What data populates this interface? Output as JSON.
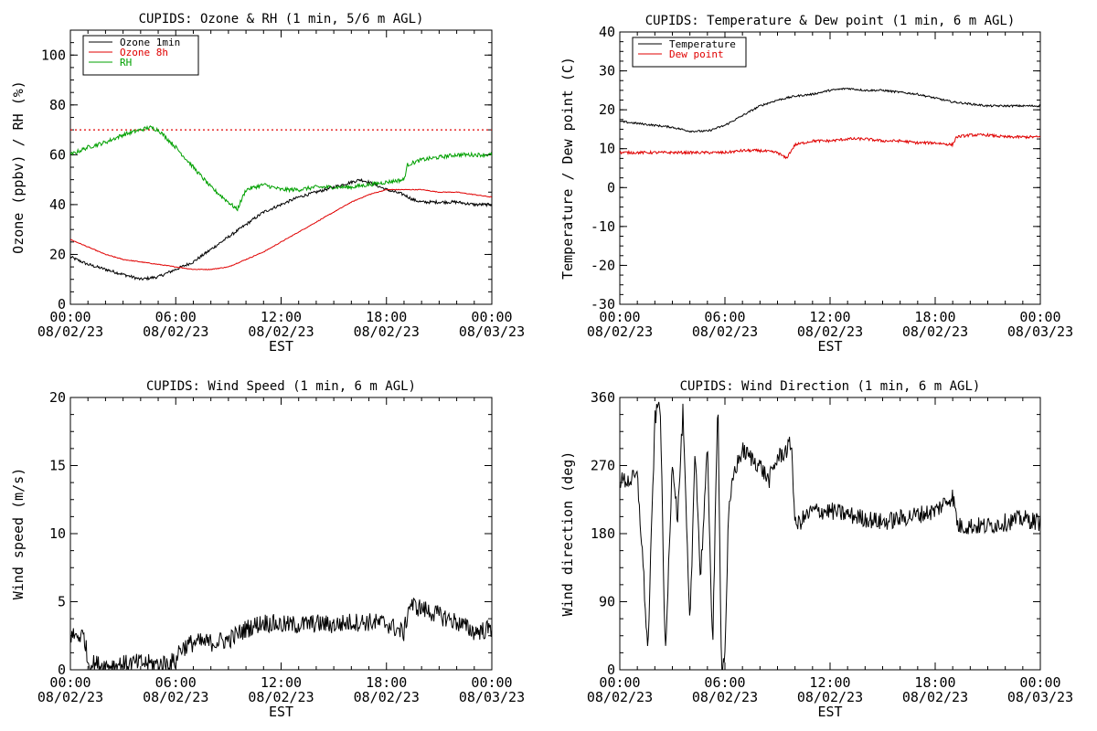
{
  "colors": {
    "black": "#000000",
    "red": "#e00000",
    "green": "#00a000"
  },
  "chart_data": [
    {
      "type": "line",
      "title": "CUPIDS: Ozone & RH (1 min, 5/6 m AGL)",
      "xlabel": "EST",
      "ylabel": "Ozone (ppbv) / RH (%)",
      "ylim": [
        0,
        110
      ],
      "yticks": [
        0,
        20,
        40,
        60,
        80,
        100
      ],
      "xlim_hours": [
        0,
        24
      ],
      "xticks": [
        {
          "hour": 0,
          "time": "00:00",
          "date": "08/02/23"
        },
        {
          "hour": 6,
          "time": "06:00",
          "date": "08/02/23"
        },
        {
          "hour": 12,
          "time": "12:00",
          "date": "08/02/23"
        },
        {
          "hour": 18,
          "time": "18:00",
          "date": "08/02/23"
        },
        {
          "hour": 24,
          "time": "00:00",
          "date": "08/03/23"
        }
      ],
      "reference_line": {
        "y": 70,
        "color": "#e00000",
        "style": "dotted"
      },
      "legend_position": "top-left",
      "series": [
        {
          "name": "Ozone 1min",
          "color": "#000000",
          "x": [
            0,
            1,
            2,
            3,
            4,
            5,
            6,
            7,
            8,
            9,
            10,
            11,
            12,
            13,
            14,
            15,
            16,
            16.5,
            17,
            18,
            19,
            19.5,
            20,
            21,
            22,
            23,
            24
          ],
          "y": [
            19,
            16,
            14,
            12,
            10,
            11,
            14,
            17,
            22,
            27,
            32,
            37,
            40,
            43,
            45,
            47,
            49,
            50,
            49,
            46,
            44,
            42,
            41,
            41,
            41,
            40,
            40
          ]
        },
        {
          "name": "Ozone 8h",
          "color": "#e00000",
          "x": [
            0,
            1,
            2,
            3,
            4,
            5,
            6,
            7,
            8,
            9,
            10,
            11,
            12,
            13,
            14,
            15,
            16,
            17,
            18,
            19,
            20,
            21,
            22,
            23,
            24
          ],
          "y": [
            26,
            23,
            20,
            18,
            17,
            16,
            15,
            14,
            14,
            15,
            18,
            21,
            25,
            29,
            33,
            37,
            41,
            44,
            46,
            46,
            46,
            45,
            45,
            44,
            43
          ]
        },
        {
          "name": "RH",
          "color": "#00a000",
          "x": [
            0,
            1,
            2,
            3,
            4,
            4.5,
            5,
            6,
            7,
            8,
            9,
            9.5,
            10,
            11,
            12,
            13,
            14,
            15,
            16,
            17,
            18,
            19,
            19.2,
            20,
            21,
            22,
            23,
            24
          ],
          "y": [
            60,
            63,
            65,
            68,
            70,
            71,
            70,
            63,
            55,
            47,
            41,
            38,
            46,
            48,
            46,
            46,
            47,
            47,
            47,
            48,
            49,
            50,
            56,
            58,
            59,
            60,
            60,
            60
          ]
        }
      ]
    },
    {
      "type": "line",
      "title": "CUPIDS: Temperature & Dew point (1 min, 6 m AGL)",
      "xlabel": "EST",
      "ylabel": "Temperature / Dew point (C)",
      "ylim": [
        -30,
        40
      ],
      "yticks": [
        -30,
        -20,
        -10,
        0,
        10,
        20,
        30,
        40
      ],
      "xlim_hours": [
        0,
        24
      ],
      "xticks": [
        {
          "hour": 0,
          "time": "00:00",
          "date": "08/02/23"
        },
        {
          "hour": 6,
          "time": "06:00",
          "date": "08/02/23"
        },
        {
          "hour": 12,
          "time": "12:00",
          "date": "08/02/23"
        },
        {
          "hour": 18,
          "time": "18:00",
          "date": "08/02/23"
        },
        {
          "hour": 24,
          "time": "00:00",
          "date": "08/03/23"
        }
      ],
      "legend_position": "top-left",
      "series": [
        {
          "name": "Temperature",
          "color": "#000000",
          "x": [
            0,
            1,
            2,
            3,
            4,
            5,
            6,
            7,
            8,
            9,
            10,
            11,
            12,
            13,
            14,
            15,
            16,
            17,
            18,
            19,
            20,
            21,
            22,
            23,
            24
          ],
          "y": [
            17,
            16.5,
            16,
            15.5,
            14.5,
            14.5,
            16,
            18.5,
            21,
            22.5,
            23.5,
            24,
            25,
            25.5,
            25,
            25,
            24.5,
            24,
            23,
            22,
            21.5,
            21,
            21,
            21,
            21
          ]
        },
        {
          "name": "Dew point",
          "color": "#e00000",
          "x": [
            0,
            1,
            2,
            3,
            4,
            5,
            6,
            7,
            8,
            9,
            9.5,
            10,
            11,
            12,
            13,
            14,
            15,
            16,
            17,
            18,
            19,
            19.2,
            20,
            21,
            22,
            23,
            24
          ],
          "y": [
            9,
            9,
            9,
            9,
            9,
            9,
            9,
            9.5,
            9.5,
            9,
            7.5,
            11,
            12,
            12,
            12.5,
            12.5,
            12,
            12,
            11.5,
            11.5,
            11,
            13,
            13.5,
            13.5,
            13,
            13,
            13
          ]
        }
      ]
    },
    {
      "type": "line",
      "title": "CUPIDS: Wind Speed (1 min, 6 m AGL)",
      "xlabel": "EST",
      "ylabel": "Wind speed (m/s)",
      "ylim": [
        0,
        20
      ],
      "yticks": [
        0,
        5,
        10,
        15,
        20
      ],
      "xlim_hours": [
        0,
        24
      ],
      "xticks": [
        {
          "hour": 0,
          "time": "00:00",
          "date": "08/02/23"
        },
        {
          "hour": 6,
          "time": "06:00",
          "date": "08/02/23"
        },
        {
          "hour": 12,
          "time": "12:00",
          "date": "08/02/23"
        },
        {
          "hour": 18,
          "time": "18:00",
          "date": "08/02/23"
        },
        {
          "hour": 24,
          "time": "00:00",
          "date": "08/03/23"
        }
      ],
      "series": [
        {
          "color": "#000000",
          "x": [
            0,
            0.5,
            0.8,
            1,
            2,
            3,
            4,
            5,
            6,
            6.2,
            7,
            8,
            9,
            10,
            11,
            12,
            13,
            14,
            15,
            16,
            17,
            18,
            19,
            19.3,
            20,
            21,
            22,
            23,
            24
          ],
          "y": [
            2.5,
            2.5,
            2.5,
            0.5,
            0.3,
            0.4,
            0.5,
            0.4,
            0.6,
            1.5,
            2,
            2,
            2.2,
            3,
            3.5,
            3.3,
            3.3,
            3.4,
            3.3,
            3.5,
            3.5,
            3.4,
            2.7,
            4.8,
            4.5,
            4,
            3.5,
            2.8,
            3
          ]
        }
      ]
    },
    {
      "type": "line",
      "title": "CUPIDS: Wind Direction (1 min, 6 m AGL)",
      "xlabel": "EST",
      "ylabel": "Wind direction (deg)",
      "ylim": [
        0,
        360
      ],
      "yticks": [
        0,
        90,
        180,
        270,
        360
      ],
      "xlim_hours": [
        0,
        24
      ],
      "xticks": [
        {
          "hour": 0,
          "time": "00:00",
          "date": "08/02/23"
        },
        {
          "hour": 6,
          "time": "06:00",
          "date": "08/02/23"
        },
        {
          "hour": 12,
          "time": "12:00",
          "date": "08/02/23"
        },
        {
          "hour": 18,
          "time": "18:00",
          "date": "08/02/23"
        },
        {
          "hour": 24,
          "time": "00:00",
          "date": "08/03/23"
        }
      ],
      "series": [
        {
          "color": "#000000",
          "x": [
            0,
            0.5,
            1,
            1.3,
            1.6,
            2,
            2.3,
            2.6,
            3,
            3.3,
            3.6,
            4,
            4.3,
            4.6,
            5,
            5.3,
            5.6,
            5.8,
            6,
            6.2,
            6.5,
            7,
            7.5,
            8,
            8.5,
            9,
            9.5,
            9.8,
            10,
            10.5,
            11,
            12,
            13,
            14,
            15,
            16,
            17,
            18,
            19,
            19.3,
            20,
            21,
            22,
            23,
            24
          ],
          "y": [
            250,
            250,
            255,
            150,
            20,
            330,
            360,
            10,
            280,
            200,
            340,
            50,
            300,
            120,
            290,
            30,
            360,
            0,
            20,
            200,
            260,
            290,
            280,
            270,
            250,
            280,
            290,
            300,
            190,
            200,
            210,
            210,
            205,
            200,
            195,
            200,
            205,
            210,
            230,
            190,
            190,
            190,
            195,
            200,
            195
          ]
        }
      ]
    }
  ]
}
